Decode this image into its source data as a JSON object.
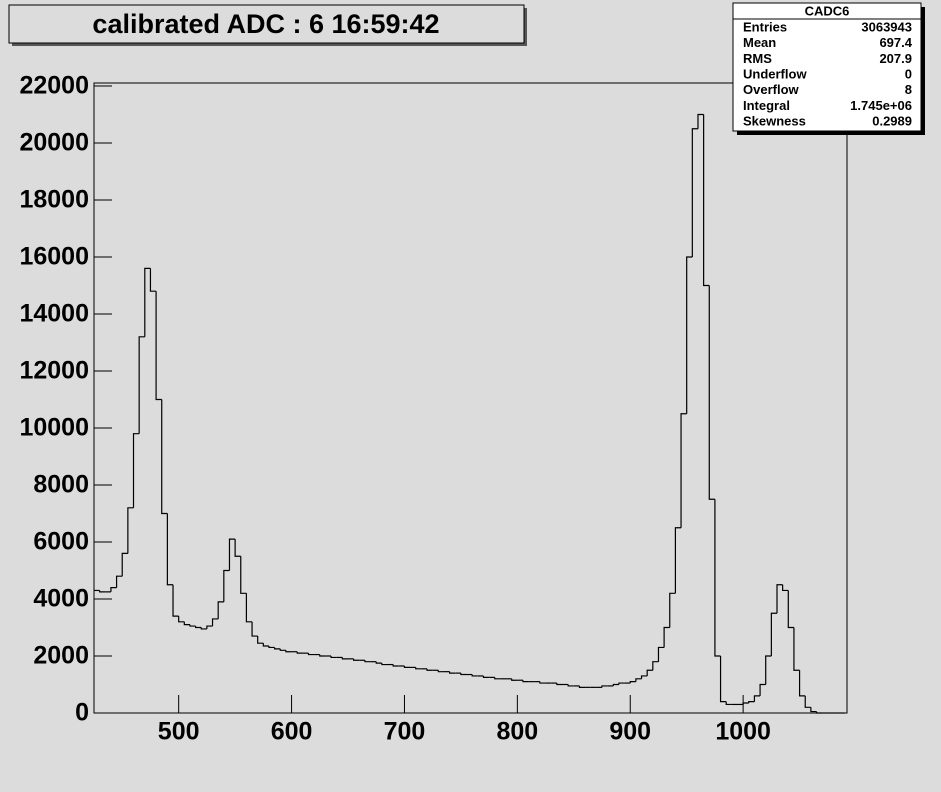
{
  "chart_data": {
    "type": "histogram",
    "title": "calibrated ADC :  6  16:59:42",
    "stats_box": {
      "title": "CADC6",
      "rows": [
        [
          "Entries",
          "3063943"
        ],
        [
          "Mean",
          "697.4"
        ],
        [
          "RMS",
          "207.9"
        ],
        [
          "Underflow",
          "0"
        ],
        [
          "Overflow",
          "8"
        ],
        [
          "Integral",
          "1.745e+06"
        ],
        [
          "Skewness",
          "0.2989"
        ]
      ]
    },
    "color": "#000000",
    "xlim": [
      425,
      1092
    ],
    "xticks": [
      500,
      600,
      700,
      800,
      900,
      1000
    ],
    "ylim": [
      0,
      22000
    ],
    "yticks": [
      0,
      2000,
      4000,
      6000,
      8000,
      10000,
      12000,
      14000,
      16000,
      18000,
      20000,
      22000
    ],
    "bins": [
      425,
      430,
      435,
      440,
      445,
      450,
      455,
      460,
      465,
      470,
      475,
      480,
      485,
      490,
      495,
      500,
      505,
      510,
      515,
      520,
      525,
      530,
      535,
      540,
      545,
      550,
      555,
      560,
      565,
      570,
      575,
      580,
      585,
      590,
      595,
      600,
      605,
      610,
      615,
      620,
      625,
      630,
      635,
      640,
      645,
      650,
      655,
      660,
      665,
      670,
      675,
      680,
      685,
      690,
      695,
      700,
      705,
      710,
      715,
      720,
      725,
      730,
      735,
      740,
      745,
      750,
      755,
      760,
      765,
      770,
      775,
      780,
      785,
      790,
      795,
      800,
      805,
      810,
      815,
      820,
      825,
      830,
      835,
      840,
      845,
      850,
      855,
      860,
      865,
      870,
      875,
      880,
      885,
      890,
      895,
      900,
      905,
      910,
      915,
      920,
      925,
      930,
      935,
      940,
      945,
      950,
      955,
      960,
      965,
      970,
      975,
      980,
      985,
      990,
      995,
      1000,
      1005,
      1010,
      1015,
      1020,
      1025,
      1030,
      1035,
      1040,
      1045,
      1050,
      1055,
      1060,
      1065,
      1070,
      1075,
      1080,
      1085,
      1090
    ],
    "values": [
      4300,
      4250,
      4250,
      4400,
      4800,
      5600,
      7200,
      9800,
      13200,
      15600,
      14800,
      11000,
      7000,
      4500,
      3400,
      3200,
      3100,
      3050,
      3000,
      2950,
      3050,
      3300,
      3900,
      5000,
      6100,
      5500,
      4200,
      3200,
      2700,
      2450,
      2350,
      2300,
      2250,
      2200,
      2150,
      2150,
      2100,
      2100,
      2050,
      2050,
      2000,
      2000,
      1950,
      1950,
      1900,
      1900,
      1850,
      1850,
      1800,
      1800,
      1750,
      1700,
      1700,
      1650,
      1650,
      1600,
      1600,
      1550,
      1550,
      1500,
      1500,
      1450,
      1450,
      1400,
      1400,
      1350,
      1350,
      1300,
      1300,
      1250,
      1250,
      1200,
      1200,
      1200,
      1150,
      1150,
      1100,
      1100,
      1100,
      1050,
      1050,
      1050,
      1000,
      1000,
      950,
      950,
      900,
      900,
      900,
      900,
      950,
      950,
      1000,
      1050,
      1050,
      1100,
      1200,
      1300,
      1500,
      1800,
      2300,
      3000,
      4200,
      6500,
      10500,
      16000,
      20500,
      21000,
      15000,
      7500,
      2000,
      400,
      300,
      300,
      300,
      350,
      400,
      600,
      1000,
      2000,
      3500,
      4500,
      4300,
      3000,
      1500,
      600,
      200,
      50,
      0,
      0,
      0,
      0,
      0
    ]
  }
}
